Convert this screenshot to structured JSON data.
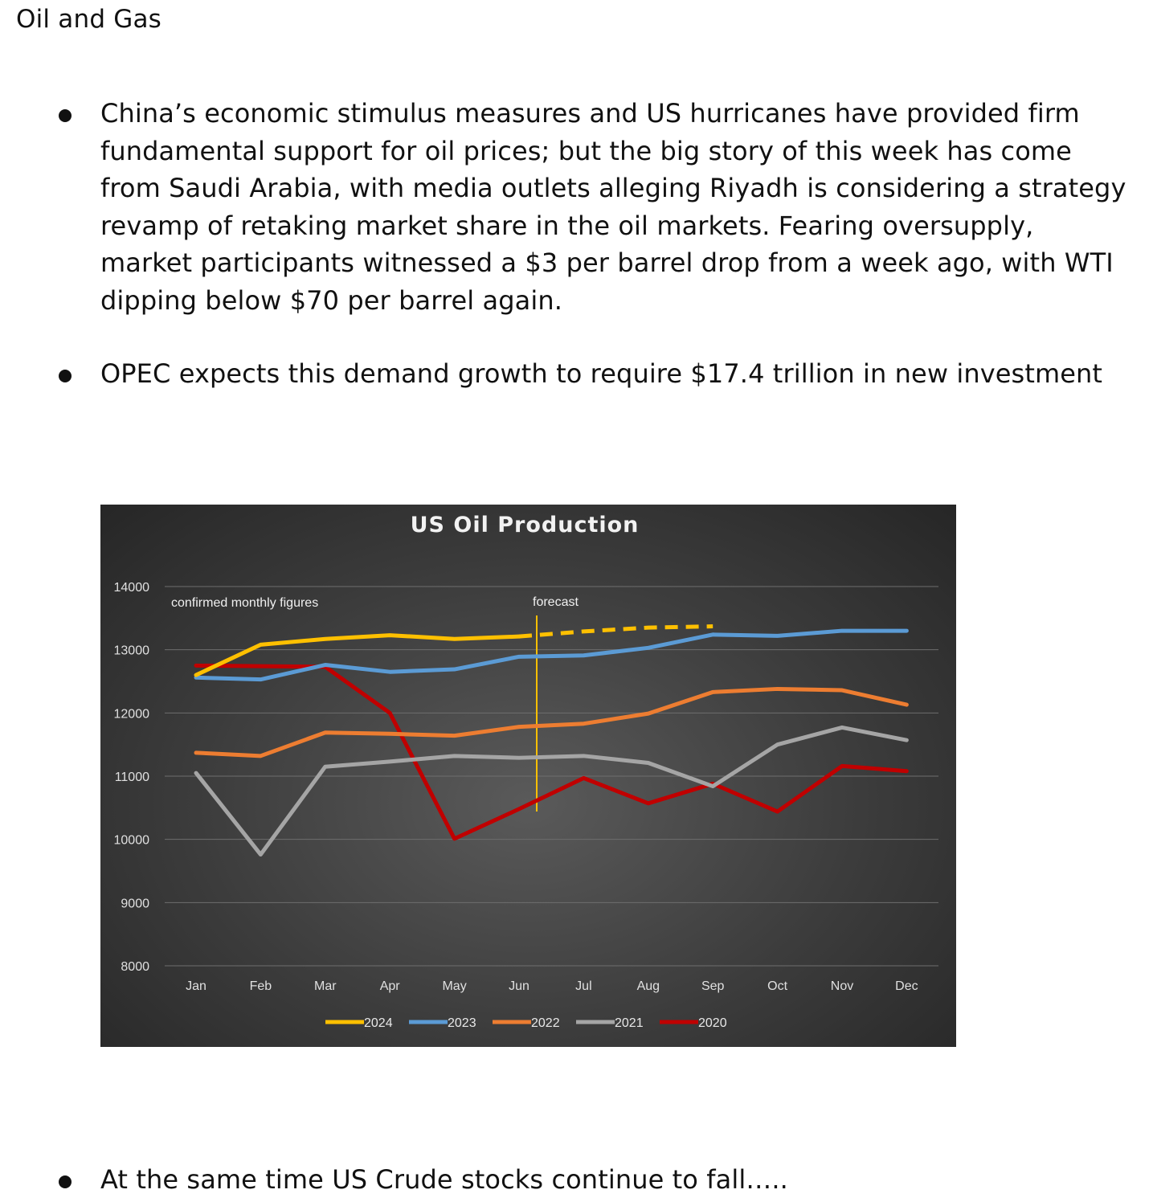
{
  "heading": "Oil and Gas",
  "bullets": [
    "China’s economic stimulus measures and US hurricanes have provided firm fundamental support for oil prices; but the big story of this week has come from Saudi Arabia, with media outlets alleging Riyadh is considering a strategy revamp of retaking market share in the oil markets. Fearing oversupply, market participants witnessed a $3 per barrel drop from a week ago, with WTI dipping below $70 per barrel again.",
    "OPEC expects this demand growth to require $17.4 trillion in new investment",
    "At the same time US Crude stocks continue to fall….."
  ],
  "chart_data": {
    "type": "line",
    "title": "US Oil Production",
    "categories": [
      "Jan",
      "Feb",
      "Mar",
      "Apr",
      "May",
      "Jun",
      "Jul",
      "Aug",
      "Sep",
      "Oct",
      "Nov",
      "Dec"
    ],
    "ylim": [
      8000,
      14000
    ],
    "yticks": [
      "14000",
      "13000",
      "12000",
      "11000",
      "10000",
      "9000",
      "8000"
    ],
    "grid": true,
    "legend_position": "bottom",
    "annotations": {
      "confirmed": "confirmed monthly figures",
      "forecast": "forecast"
    },
    "forecast_marker_x": "Jun",
    "series": [
      {
        "name": "2024",
        "color": "#ffc000",
        "values": [
          12600,
          13080,
          13170,
          13230,
          13170,
          13210,
          13290,
          13350,
          13370,
          null,
          null,
          null
        ],
        "forecast_from_index": 5
      },
      {
        "name": "2023",
        "color": "#5b9bd5",
        "values": [
          12560,
          12530,
          12760,
          12650,
          12690,
          12890,
          12910,
          13030,
          13240,
          13220,
          13300,
          13300
        ]
      },
      {
        "name": "2022",
        "color": "#ed7d31",
        "values": [
          11370,
          11320,
          11690,
          11670,
          11640,
          11780,
          11830,
          11990,
          12330,
          12380,
          12360,
          12130
        ]
      },
      {
        "name": "2021",
        "color": "#a5a5a5",
        "values": [
          11050,
          9760,
          11150,
          11230,
          11320,
          11290,
          11320,
          11210,
          10840,
          11500,
          11770,
          11570
        ]
      },
      {
        "name": "2020",
        "color": "#c00000",
        "values": [
          12750,
          12740,
          12730,
          12000,
          10010,
          10480,
          10970,
          10570,
          10880,
          10440,
          11160,
          11080
        ]
      }
    ]
  }
}
